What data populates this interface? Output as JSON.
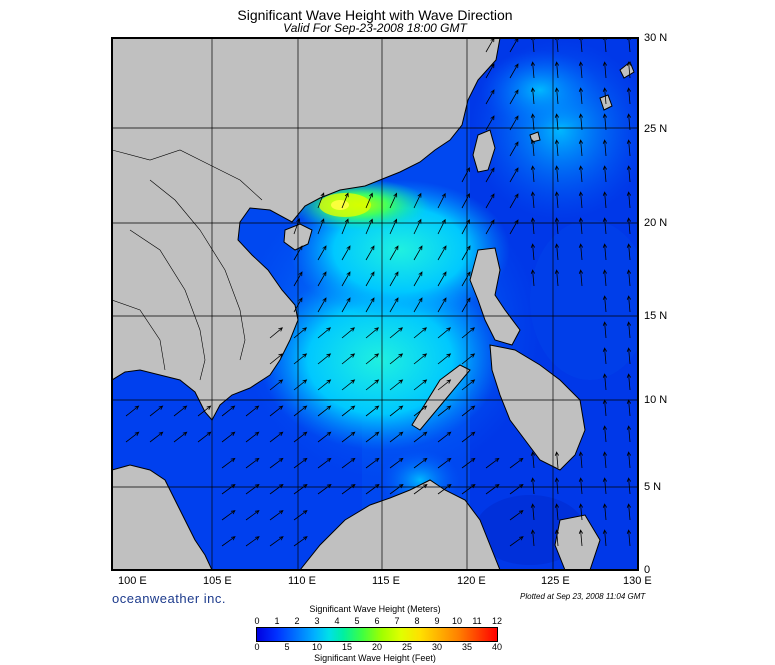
{
  "title": "Significant Wave Height with Wave Direction",
  "subtitle": "Valid For Sep-23-2008 18:00 GMT",
  "map": {
    "lon_range": [
      100,
      130
    ],
    "lat_range": [
      0,
      30
    ],
    "lat_labels": [
      "30 N",
      "25 N",
      "20 N",
      "15 N",
      "10 N",
      "5 N",
      "0"
    ],
    "lon_labels": [
      "100 E",
      "105 E",
      "110 E",
      "115 E",
      "120 E",
      "125 E",
      "130 E"
    ],
    "land_color": "#c0c0c0",
    "arrow_direction": "northward (varies by region)"
  },
  "brand": "oceanweather inc.",
  "plotted": "Plotted at Sep 23, 2008 11:04 GMT",
  "colorbar": {
    "meters_title": "Significant Wave Height (Meters)",
    "meters_ticks": [
      "0",
      "1",
      "2",
      "3",
      "4",
      "5",
      "6",
      "7",
      "8",
      "9",
      "10",
      "11",
      "12"
    ],
    "feet_ticks": [
      "0",
      "5",
      "10",
      "15",
      "20",
      "25",
      "30",
      "35",
      "40"
    ],
    "feet_title": "Significant Wave Height (Feet)"
  }
}
